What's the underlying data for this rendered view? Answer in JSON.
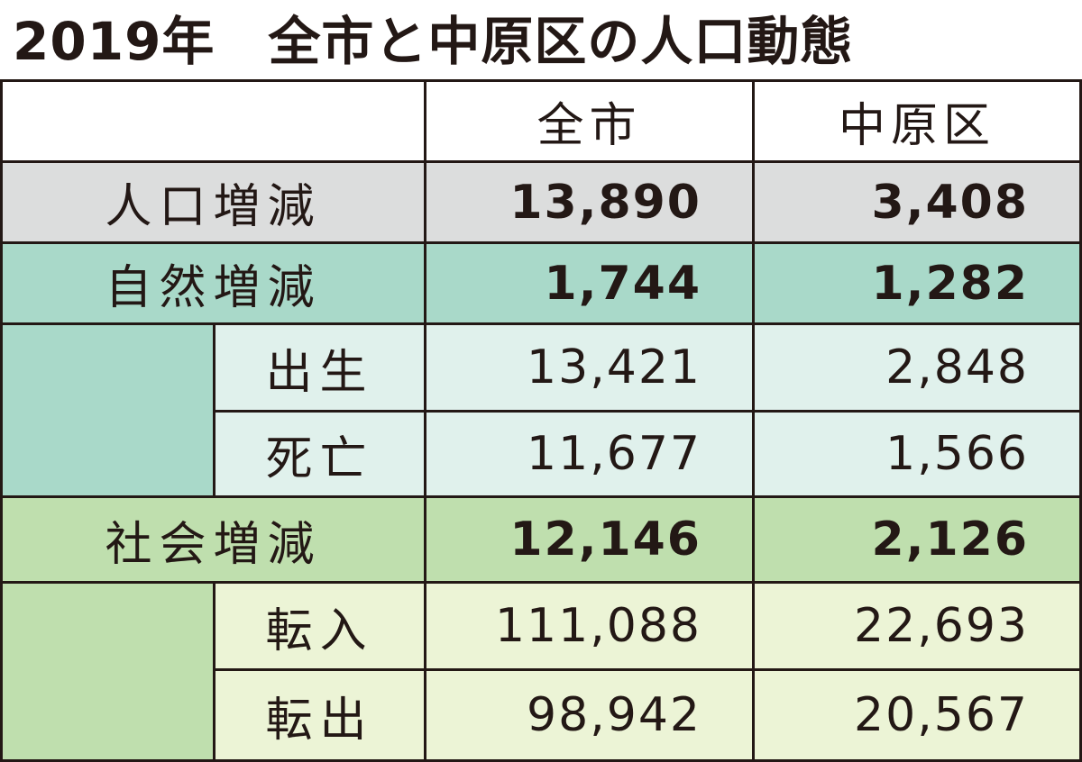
{
  "title": "2019年　全市と中原区の人口動態",
  "table": {
    "header": [
      "全市",
      "中原区"
    ],
    "rows": [
      {
        "label": "人口増減",
        "values": [
          "13,890",
          "3,408"
        ]
      },
      {
        "label": "自然増減",
        "values": [
          "1,744",
          "1,282"
        ]
      },
      {
        "label": "出生",
        "values": [
          "13,421",
          "2,848"
        ]
      },
      {
        "label": "死亡",
        "values": [
          "11,677",
          "1,566"
        ]
      },
      {
        "label": "社会増減",
        "values": [
          "12,146",
          "2,126"
        ]
      },
      {
        "label": "転入",
        "values": [
          "111,088",
          "22,693"
        ]
      },
      {
        "label": "転出",
        "values": [
          "98,942",
          "20,567"
        ]
      }
    ]
  }
}
